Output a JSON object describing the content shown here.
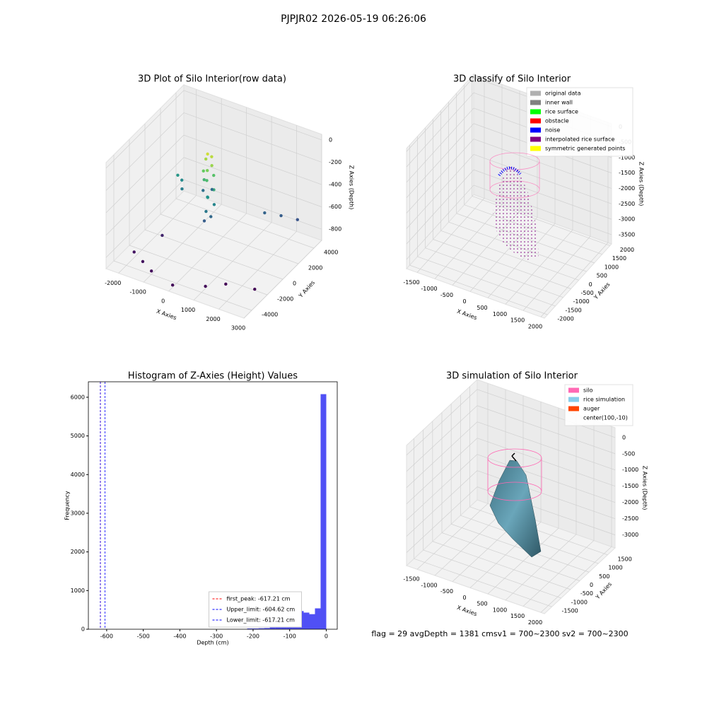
{
  "title": "PJPJR02 2026-05-19 06:26:06",
  "footer": "flag = 29  avgDepth = 1381 cmsv1 = 700~2300  sv2 = 700~2300",
  "chart_data": [
    {
      "type": "scatter3d",
      "title": "3D Plot of Silo Interior(row data)",
      "xlabel": "X Axies",
      "ylabel": "Y Axies",
      "zlabel": "Z Axies (Depth)",
      "xlim": [
        -2500,
        3000
      ],
      "ylim": [
        -5000,
        5000
      ],
      "zlim": [
        -900,
        50
      ],
      "xticks": [
        -2000,
        -1000,
        0,
        1000,
        2000,
        3000
      ],
      "yticks": [
        -4000,
        -2000,
        0,
        2000,
        4000
      ],
      "zticks": [
        -800,
        -600,
        -400,
        -200,
        0
      ],
      "colormap": "viridis",
      "x": [
        0,
        100,
        -100,
        200,
        50,
        -150,
        150,
        0,
        -200,
        250,
        100,
        -50,
        200,
        0,
        100,
        -100,
        -1500,
        -1400,
        -1300,
        -800,
        -600,
        1500,
        2000,
        2500,
        -2000,
        -1500,
        -1000,
        0,
        1000,
        1500,
        2500,
        -1500
      ],
      "y": [
        0,
        200,
        100,
        -100,
        -200,
        -50,
        300,
        -100,
        200,
        0,
        -300,
        150,
        200,
        -200,
        100,
        -100,
        1000,
        1200,
        900,
        2000,
        2500,
        2500,
        3000,
        3500,
        -3000,
        -3500,
        -4000,
        -4500,
        -3500,
        -2500,
        -2000,
        -1000
      ],
      "z": [
        -20,
        -50,
        -80,
        -100,
        -150,
        -180,
        -220,
        -250,
        -280,
        -320,
        -380,
        -420,
        -470,
        -520,
        -580,
        -620,
        -400,
        -450,
        -500,
        -550,
        -560,
        -600,
        -620,
        -650,
        -850,
        -860,
        -870,
        -880,
        -880,
        -890,
        -890,
        -800
      ]
    },
    {
      "type": "scatter3d",
      "title": "3D classify of Silo Interior",
      "xlabel": "X Axies",
      "ylabel": "Y Axies",
      "zlabel": "Z Axies (Depth)",
      "xlim": [
        -1800,
        2100
      ],
      "ylim": [
        -2200,
        2100
      ],
      "zlim": [
        -3800,
        100
      ],
      "xticks": [
        -1500,
        -1000,
        -500,
        0,
        500,
        1000,
        1500,
        2000
      ],
      "yticks": [
        -2000,
        -1500,
        -1000,
        -500,
        0,
        500,
        1000,
        1500,
        2000
      ],
      "zticks": [
        -3500,
        -3000,
        -2500,
        -2000,
        -1500,
        -1000,
        -500,
        0
      ],
      "legend": [
        {
          "name": "original data",
          "color": "#b0b0b0"
        },
        {
          "name": "inner wall",
          "color": "#808080"
        },
        {
          "name": "rice surface",
          "color": "#00ff00"
        },
        {
          "name": "obstacle",
          "color": "#ff0000"
        },
        {
          "name": "noise",
          "color": "#0000ff"
        },
        {
          "name": "interpolated rice surface",
          "color": "#800080"
        },
        {
          "name": "symmetric generated points",
          "color": "#ffff00"
        }
      ]
    },
    {
      "type": "histogram",
      "title": "Histogram of Z-Axies (Height) Values",
      "xlabel": "Depth (cm)",
      "ylabel": "Frequency",
      "color": "#5050f5",
      "xlim": [
        -650,
        30
      ],
      "ylim": [
        0,
        6400
      ],
      "xticks": [
        -600,
        -500,
        -400,
        -300,
        -200,
        -100,
        0
      ],
      "yticks": [
        0,
        1000,
        2000,
        3000,
        4000,
        5000,
        6000
      ],
      "bins": [
        -617.21,
        -601.78,
        -586.35,
        -570.92,
        -555.49,
        -540.06,
        -524.63,
        -509.2,
        -493.77,
        -478.34,
        -462.91,
        -447.48,
        -432.05,
        -416.62,
        -401.19,
        -385.76,
        -370.33,
        -354.9,
        -339.47,
        -324.04,
        -308.61,
        -293.18,
        -277.75,
        -262.32,
        -246.89,
        -231.46,
        -216.03,
        -200.6,
        -185.17,
        -169.74,
        -154.31,
        -138.88,
        -123.45,
        -108.02,
        -92.59,
        -77.16,
        -61.73,
        -46.3,
        -30.87,
        -15.44,
        0
      ],
      "values": [
        0,
        0,
        0,
        0,
        0,
        0,
        0,
        0,
        0,
        0,
        0,
        0,
        0,
        0,
        0,
        0,
        0,
        0,
        0,
        0,
        0,
        0,
        0,
        0,
        0,
        0,
        20,
        20,
        25,
        30,
        45,
        60,
        150,
        300,
        440,
        470,
        430,
        390,
        540,
        6080
      ],
      "lines": [
        {
          "label": "first_peak: -617.21 cm",
          "value": -617.21,
          "color": "#ff0000"
        },
        {
          "label": "Upper_limit: -604.62 cm",
          "value": -604.62,
          "color": "#0000ff"
        },
        {
          "label": "Lower_limit: -617.21 cm",
          "value": -617.21,
          "color": "#0000ff"
        }
      ],
      "legend_corner": "lower center"
    },
    {
      "type": "surface3d",
      "title": "3D simulation of Silo Interior",
      "xlabel": "X Axies",
      "ylabel": "Y Axies",
      "zlabel": "Z Axies (Depth)",
      "xlim": [
        -1800,
        2100
      ],
      "ylim": [
        -1900,
        1900
      ],
      "zlim": [
        -3400,
        300
      ],
      "xticks": [
        -1500,
        -1000,
        -500,
        0,
        500,
        1000,
        1500,
        2000
      ],
      "yticks": [
        -1500,
        -1000,
        -500,
        0,
        500,
        1000,
        1500
      ],
      "zticks": [
        -3000,
        -2500,
        -2000,
        -1500,
        -1000,
        -500,
        0
      ],
      "legend": [
        {
          "name": "silo",
          "color": "#ff69b4"
        },
        {
          "name": "rice simulation",
          "color": "#87ceeb"
        },
        {
          "name": "auger",
          "color": "#ff4500"
        },
        {
          "name": "center(100,-10)"
        }
      ]
    }
  ]
}
